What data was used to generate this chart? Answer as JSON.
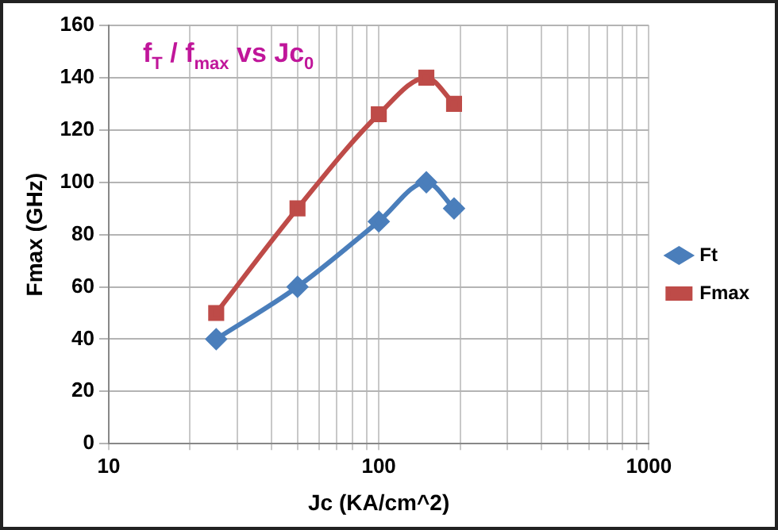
{
  "chart_data": {
    "type": "line",
    "title": "f$_{T}$ / f$_{max}$ vs Jc$_{0}$",
    "xlabel": "Jc (KA/cm^2)",
    "ylabel": "Fmax (GHz)",
    "x": [
      25,
      50,
      100,
      150,
      190
    ],
    "series": [
      {
        "name": "Ft",
        "color": "#4a7ebb",
        "values": [
          40,
          60,
          85,
          100,
          90
        ],
        "marker": "diamond"
      },
      {
        "name": "Fmax",
        "color": "#be4b48",
        "values": [
          50,
          90,
          126,
          140,
          130
        ],
        "marker": "square"
      }
    ],
    "log": "x",
    "xlim": [
      10,
      1000
    ],
    "xticks": [
      10,
      100,
      1000
    ],
    "ylim": [
      0,
      160
    ],
    "yticks": [
      0,
      20,
      40,
      60,
      80,
      100,
      120,
      140,
      160
    ],
    "grid": true,
    "legend": "right",
    "line_style": "solid"
  }
}
